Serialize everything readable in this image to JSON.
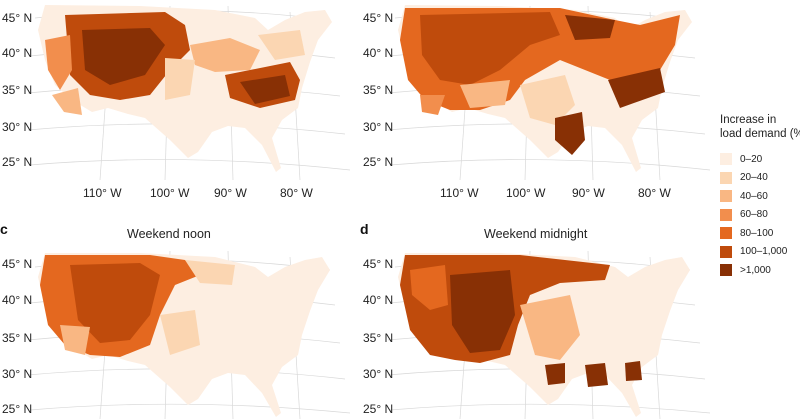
{
  "legend": {
    "title_line1": "Increase in",
    "title_line2": "load demand (%)",
    "items": [
      {
        "label": "0–20",
        "color": "#fdeee1"
      },
      {
        "label": "20–40",
        "color": "#fbd6b2"
      },
      {
        "label": "40–60",
        "color": "#f9b783"
      },
      {
        "label": "60–80",
        "color": "#f28e4d"
      },
      {
        "label": "80–100",
        "color": "#e4681f"
      },
      {
        "label": "100–1,000",
        "color": "#bf4b0c"
      },
      {
        "label": ">1,000",
        "color": "#883005"
      }
    ]
  },
  "panels": [
    {
      "id": "a",
      "label": "",
      "title": "",
      "lat_labels": [
        "45° N",
        "40° N",
        "35° N",
        "30° N",
        "25° N"
      ],
      "lon_labels": [
        "110° W",
        "100° W",
        "90° W",
        "80° W"
      ]
    },
    {
      "id": "b",
      "label": "",
      "title": "",
      "lat_labels": [
        "45° N",
        "40° N",
        "35° N",
        "30° N",
        "25° N"
      ],
      "lon_labels": [
        "110° W",
        "100° W",
        "90° W",
        "80° W"
      ]
    },
    {
      "id": "c",
      "label": "c",
      "title": "Weekend noon",
      "lat_labels": [
        "45° N",
        "40° N",
        "35° N",
        "30° N",
        "25° N"
      ],
      "lon_labels": []
    },
    {
      "id": "d",
      "label": "d",
      "title": "Weekend midnight",
      "lat_labels": [
        "45° N",
        "40° N",
        "35° N",
        "30° N",
        "25° N"
      ],
      "lon_labels": []
    }
  ]
}
